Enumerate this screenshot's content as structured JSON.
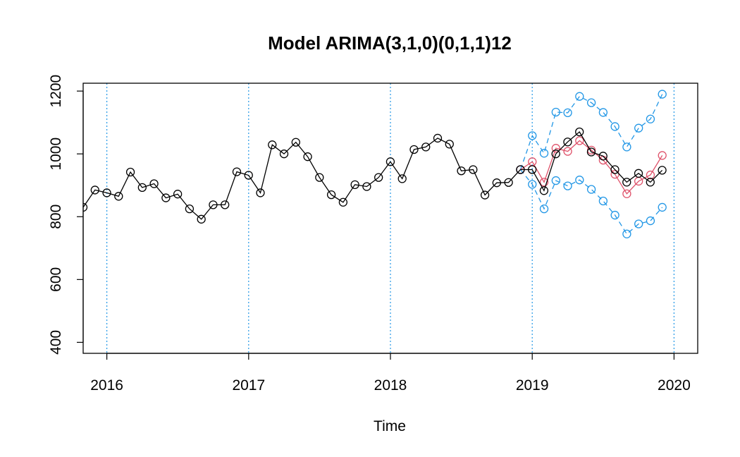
{
  "chart_data": {
    "type": "line",
    "title": "Model ARIMA(3,1,0)(0,1,1)12",
    "xlabel": "Time",
    "ylabel": "",
    "xlim": [
      2015.833,
      2020.167
    ],
    "ylim": [
      365,
      1225
    ],
    "x_ticks": [
      2016,
      2017,
      2018,
      2019,
      2020
    ],
    "y_ticks": [
      400,
      600,
      800,
      1000,
      1200
    ],
    "vertical_reference_lines": [
      2016,
      2017,
      2018,
      2019,
      2020
    ],
    "grid": false,
    "legend": "none",
    "colors": {
      "observed": "#000000",
      "forecast": "#DF536B",
      "interval": "#2297E6"
    },
    "series": [
      {
        "key": "observed",
        "x_start": 2015.833,
        "step": 0.083333,
        "values": [
          830,
          885,
          876,
          865,
          942,
          893,
          905,
          860,
          872,
          825,
          792,
          838,
          838,
          943,
          932,
          876,
          1029,
          1000,
          1037,
          991,
          925,
          870,
          846,
          902,
          896,
          925,
          975,
          921,
          1014,
          1022,
          1050,
          1031,
          946,
          950,
          869,
          908,
          909,
          950,
          950,
          883,
          1000,
          1038,
          1070,
          1006,
          993,
          950,
          910,
          938,
          910,
          948
        ],
        "line_style": "solid",
        "marker": "circle"
      },
      {
        "key": "forecast",
        "x_start": 2018.917,
        "step": 0.083333,
        "values": [
          950,
          975,
          910,
          1018,
          1008,
          1042,
          1012,
          980,
          935,
          873,
          913,
          933,
          995
        ],
        "line_style": "solid",
        "marker": "circle"
      },
      {
        "key": "upper",
        "x_start": 2018.917,
        "step": 0.083333,
        "values": [
          950,
          1058,
          1002,
          1133,
          1131,
          1183,
          1163,
          1132,
          1087,
          1022,
          1082,
          1111,
          1190
        ],
        "line_style": "dashed",
        "marker": "circle"
      },
      {
        "key": "lower",
        "x_start": 2018.917,
        "step": 0.083333,
        "values": [
          950,
          903,
          825,
          915,
          898,
          917,
          887,
          850,
          805,
          745,
          777,
          787,
          830
        ],
        "line_style": "dashed",
        "marker": "circle"
      }
    ]
  }
}
